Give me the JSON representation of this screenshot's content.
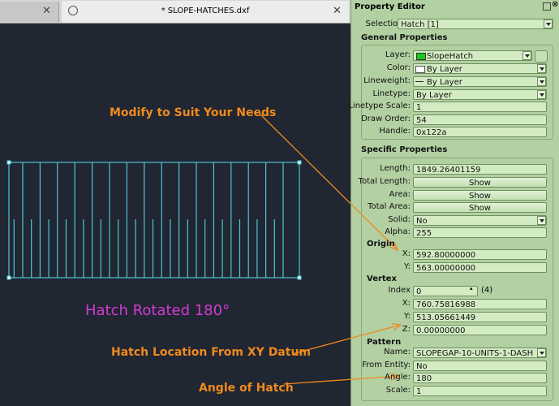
{
  "tabs": [
    "* SLOPE-HATCHES.dxf"
  ],
  "canvas": {
    "caption": "Hatch Rotated 180°",
    "annotations": [
      "Modify to Suit Your Needs",
      "Hatch Location From XY Datum",
      "Angle of Hatch"
    ]
  },
  "panel": {
    "title": "Property Editor",
    "selection_label": "Selection:",
    "selection": "Hatch [1]",
    "general": {
      "title": "General Properties",
      "rows": [
        {
          "label": "Layer:",
          "value": "SlopeHatch"
        },
        {
          "label": "Color:",
          "value": "By Layer"
        },
        {
          "label": "Lineweight:",
          "value": "By Layer"
        },
        {
          "label": "Linetype:",
          "value": "By Layer"
        },
        {
          "label": "Linetype Scale:",
          "value": "1"
        },
        {
          "label": "Draw Order:",
          "value": "54"
        },
        {
          "label": "Handle:",
          "value": "0x122a"
        }
      ]
    },
    "specific": {
      "title": "Specific Properties",
      "rows": [
        {
          "label": "Length:",
          "value": "1849.26401159"
        },
        {
          "label": "Total Length:",
          "value": "Show"
        },
        {
          "label": "Area:",
          "value": "Show"
        },
        {
          "label": "Total Area:",
          "value": "Show"
        },
        {
          "label": "Solid:",
          "value": "No"
        },
        {
          "label": "Alpha:",
          "value": "255"
        }
      ],
      "subsections": [
        {
          "title": "Origin",
          "rows": [
            {
              "label": "X:",
              "value": "592.80000000"
            },
            {
              "label": "Y:",
              "value": "563.00000000"
            }
          ]
        },
        {
          "title": "Vertex",
          "rows": [
            {
              "label": "Index",
              "value": "0",
              "count": "(4)"
            },
            {
              "label": "X:",
              "value": "760.75816988"
            },
            {
              "label": "Y:",
              "value": "513.05661449"
            },
            {
              "label": "Z:",
              "value": "0.00000000"
            }
          ]
        },
        {
          "title": "Pattern",
          "rows": [
            {
              "label": "Name:",
              "value": "SLOPEGAP-10-UNITS-1-DASH"
            },
            {
              "label": "From Entity:",
              "value": "No"
            },
            {
              "label": "Angle:",
              "value": "180"
            },
            {
              "label": "Scale:",
              "value": "1"
            }
          ]
        }
      ]
    }
  }
}
